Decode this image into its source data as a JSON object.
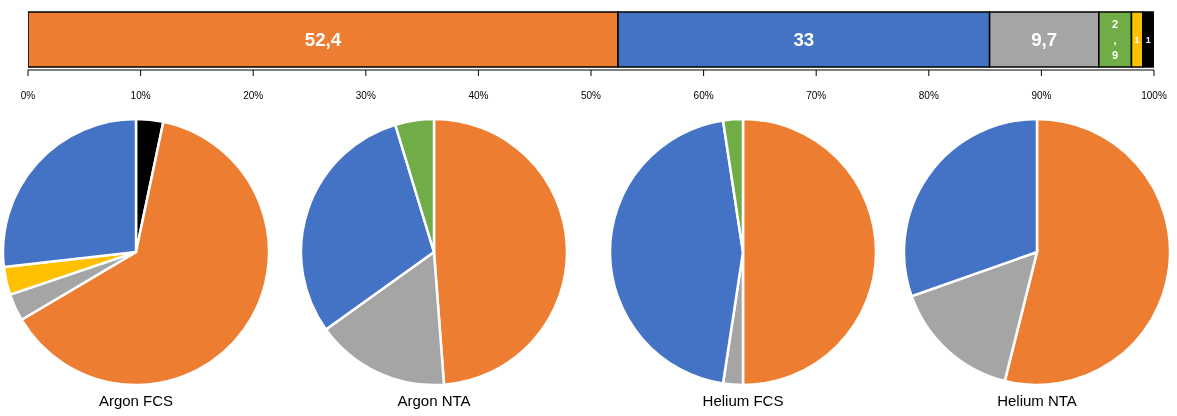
{
  "chart_data": [
    {
      "type": "bar",
      "orientation": "horizontal",
      "stacked": true,
      "categories": [
        null
      ],
      "xlim": [
        0,
        100
      ],
      "xticks": [
        {
          "value": 0,
          "label": "0%"
        },
        {
          "value": 10,
          "label": "10%"
        },
        {
          "value": 20,
          "label": "20%"
        },
        {
          "value": 30,
          "label": "30%"
        },
        {
          "value": 40,
          "label": "40%"
        },
        {
          "value": 50,
          "label": "50%"
        },
        {
          "value": 60,
          "label": "60%"
        },
        {
          "value": 70,
          "label": "70%"
        },
        {
          "value": 80,
          "label": "80%"
        },
        {
          "value": 90,
          "label": "90%"
        },
        {
          "value": 100,
          "label": "100%"
        }
      ],
      "tick_labels": "x",
      "series": [
        {
          "color": "#ed7d31",
          "values": [
            52.4
          ],
          "value_labels": [
            "52,4"
          ]
        },
        {
          "color": "#4472c4",
          "values": [
            33
          ],
          "value_labels": [
            "33"
          ]
        },
        {
          "color": "#a5a5a5",
          "values": [
            9.7
          ],
          "value_labels": [
            "9,7"
          ]
        },
        {
          "color": "#70ad47",
          "values": [
            2.9
          ],
          "value_labels": [
            "2,9"
          ]
        },
        {
          "color": "#ffc000",
          "values": [
            1
          ],
          "value_labels": [
            "1"
          ]
        },
        {
          "color": "#000000",
          "values": [
            1
          ],
          "value_labels": [
            "1"
          ]
        }
      ]
    },
    {
      "type": "pie",
      "title": "Argon FCS",
      "categories": [
        null,
        null,
        null,
        null,
        null
      ],
      "values": [
        3.3,
        63.2,
        3.3,
        3.4,
        26.8
      ],
      "colors": [
        "#000000",
        "#ed7d31",
        "#a5a5a5",
        "#ffc000",
        "#4472c4"
      ]
    },
    {
      "type": "pie",
      "title": "Argon NTA",
      "categories": [
        null,
        null,
        null,
        null
      ],
      "values": [
        48.8,
        16.3,
        30.2,
        4.7
      ],
      "colors": [
        "#ed7d31",
        "#a5a5a5",
        "#4472c4",
        "#70ad47"
      ]
    },
    {
      "type": "pie",
      "title": "Helium FCS",
      "categories": [
        null,
        null,
        null,
        null
      ],
      "values": [
        50,
        2.4,
        45.2,
        2.4
      ],
      "colors": [
        "#ed7d31",
        "#a5a5a5",
        "#4472c4",
        "#70ad47"
      ]
    },
    {
      "type": "pie",
      "title": "Helium NTA",
      "categories": [
        null,
        null,
        null
      ],
      "values": [
        53.9,
        15.7,
        30.4
      ],
      "colors": [
        "#ed7d31",
        "#a5a5a5",
        "#4472c4"
      ]
    }
  ]
}
